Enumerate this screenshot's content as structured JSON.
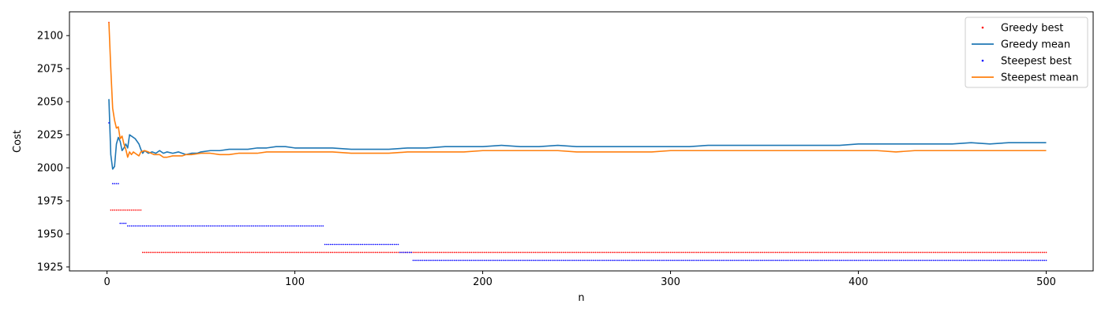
{
  "chart_data": {
    "type": "line",
    "title": "",
    "xlabel": "n",
    "ylabel": "Cost",
    "xlim": [
      -20,
      525
    ],
    "ylim": [
      1922,
      2118
    ],
    "x_ticks": [
      0,
      100,
      200,
      300,
      400,
      500
    ],
    "y_ticks": [
      1925,
      1950,
      1975,
      2000,
      2025,
      2050,
      2075,
      2100
    ],
    "grid": false,
    "legend_position": "top-right",
    "series": [
      {
        "name": "Greedy best",
        "kind": "scatter",
        "color": "#ff0000",
        "steps": [
          {
            "from": 1,
            "to": 1,
            "y": 2110
          },
          {
            "from": 2,
            "to": 18,
            "y": 1968
          },
          {
            "from": 19,
            "to": 500,
            "y": 1936
          }
        ]
      },
      {
        "name": "Greedy mean",
        "kind": "line",
        "color": "#1f77b4",
        "points": [
          [
            1,
            2052
          ],
          [
            2,
            2010
          ],
          [
            3,
            1999
          ],
          [
            4,
            2001
          ],
          [
            5,
            2018
          ],
          [
            6,
            2023
          ],
          [
            7,
            2020
          ],
          [
            8,
            2013
          ],
          [
            9,
            2015
          ],
          [
            10,
            2018
          ],
          [
            11,
            2015
          ],
          [
            12,
            2025
          ],
          [
            13,
            2024
          ],
          [
            15,
            2022
          ],
          [
            17,
            2018
          ],
          [
            18,
            2014
          ],
          [
            19,
            2011
          ],
          [
            20,
            2013
          ],
          [
            22,
            2011
          ],
          [
            24,
            2012
          ],
          [
            26,
            2011
          ],
          [
            28,
            2013
          ],
          [
            30,
            2011
          ],
          [
            32,
            2012
          ],
          [
            35,
            2011
          ],
          [
            38,
            2012
          ],
          [
            40,
            2011
          ],
          [
            42,
            2010
          ],
          [
            45,
            2011
          ],
          [
            48,
            2011
          ],
          [
            50,
            2012
          ],
          [
            55,
            2013
          ],
          [
            60,
            2013
          ],
          [
            65,
            2014
          ],
          [
            70,
            2014
          ],
          [
            75,
            2014
          ],
          [
            80,
            2015
          ],
          [
            85,
            2015
          ],
          [
            90,
            2016
          ],
          [
            95,
            2016
          ],
          [
            100,
            2015
          ],
          [
            110,
            2015
          ],
          [
            120,
            2015
          ],
          [
            130,
            2014
          ],
          [
            140,
            2014
          ],
          [
            150,
            2014
          ],
          [
            160,
            2015
          ],
          [
            170,
            2015
          ],
          [
            180,
            2016
          ],
          [
            190,
            2016
          ],
          [
            200,
            2016
          ],
          [
            210,
            2017
          ],
          [
            220,
            2016
          ],
          [
            230,
            2016
          ],
          [
            240,
            2017
          ],
          [
            250,
            2016
          ],
          [
            260,
            2016
          ],
          [
            270,
            2016
          ],
          [
            280,
            2016
          ],
          [
            290,
            2016
          ],
          [
            300,
            2016
          ],
          [
            310,
            2016
          ],
          [
            320,
            2017
          ],
          [
            330,
            2017
          ],
          [
            340,
            2017
          ],
          [
            350,
            2017
          ],
          [
            360,
            2017
          ],
          [
            370,
            2017
          ],
          [
            380,
            2017
          ],
          [
            390,
            2017
          ],
          [
            400,
            2018
          ],
          [
            410,
            2018
          ],
          [
            420,
            2018
          ],
          [
            430,
            2018
          ],
          [
            440,
            2018
          ],
          [
            450,
            2018
          ],
          [
            460,
            2019
          ],
          [
            470,
            2018
          ],
          [
            480,
            2019
          ],
          [
            490,
            2019
          ],
          [
            500,
            2019
          ]
        ]
      },
      {
        "name": "Steepest best",
        "kind": "scatter",
        "color": "#0000ff",
        "steps": [
          {
            "from": 1,
            "to": 1,
            "y": 2034
          },
          {
            "from": 3,
            "to": 6,
            "y": 1988
          },
          {
            "from": 7,
            "to": 10,
            "y": 1958
          },
          {
            "from": 11,
            "to": 115,
            "y": 1956
          },
          {
            "from": 116,
            "to": 155,
            "y": 1942
          },
          {
            "from": 156,
            "to": 162,
            "y": 1936
          },
          {
            "from": 163,
            "to": 500,
            "y": 1930
          }
        ]
      },
      {
        "name": "Steepest mean",
        "kind": "line",
        "color": "#ff7f0e",
        "points": [
          [
            1,
            2110
          ],
          [
            2,
            2075
          ],
          [
            3,
            2045
          ],
          [
            4,
            2036
          ],
          [
            5,
            2030
          ],
          [
            6,
            2031
          ],
          [
            7,
            2022
          ],
          [
            8,
            2024
          ],
          [
            9,
            2018
          ],
          [
            10,
            2014
          ],
          [
            11,
            2008
          ],
          [
            12,
            2012
          ],
          [
            13,
            2010
          ],
          [
            14,
            2012
          ],
          [
            15,
            2011
          ],
          [
            16,
            2010
          ],
          [
            17,
            2009
          ],
          [
            18,
            2012
          ],
          [
            20,
            2013
          ],
          [
            22,
            2012
          ],
          [
            25,
            2010
          ],
          [
            28,
            2010
          ],
          [
            30,
            2008
          ],
          [
            32,
            2008
          ],
          [
            35,
            2009
          ],
          [
            38,
            2009
          ],
          [
            40,
            2009
          ],
          [
            42,
            2010
          ],
          [
            45,
            2010
          ],
          [
            50,
            2011
          ],
          [
            55,
            2011
          ],
          [
            60,
            2010
          ],
          [
            65,
            2010
          ],
          [
            70,
            2011
          ],
          [
            75,
            2011
          ],
          [
            80,
            2011
          ],
          [
            85,
            2012
          ],
          [
            90,
            2012
          ],
          [
            95,
            2012
          ],
          [
            100,
            2012
          ],
          [
            110,
            2012
          ],
          [
            120,
            2012
          ],
          [
            130,
            2011
          ],
          [
            140,
            2011
          ],
          [
            150,
            2011
          ],
          [
            160,
            2012
          ],
          [
            170,
            2012
          ],
          [
            180,
            2012
          ],
          [
            190,
            2012
          ],
          [
            200,
            2013
          ],
          [
            210,
            2013
          ],
          [
            220,
            2013
          ],
          [
            230,
            2013
          ],
          [
            240,
            2013
          ],
          [
            250,
            2012
          ],
          [
            260,
            2012
          ],
          [
            270,
            2012
          ],
          [
            280,
            2012
          ],
          [
            290,
            2012
          ],
          [
            300,
            2013
          ],
          [
            310,
            2013
          ],
          [
            320,
            2013
          ],
          [
            330,
            2013
          ],
          [
            340,
            2013
          ],
          [
            350,
            2013
          ],
          [
            360,
            2013
          ],
          [
            370,
            2013
          ],
          [
            380,
            2013
          ],
          [
            390,
            2013
          ],
          [
            400,
            2013
          ],
          [
            410,
            2013
          ],
          [
            420,
            2012
          ],
          [
            430,
            2013
          ],
          [
            440,
            2013
          ],
          [
            450,
            2013
          ],
          [
            460,
            2013
          ],
          [
            470,
            2013
          ],
          [
            480,
            2013
          ],
          [
            490,
            2013
          ],
          [
            500,
            2013
          ]
        ]
      }
    ]
  }
}
